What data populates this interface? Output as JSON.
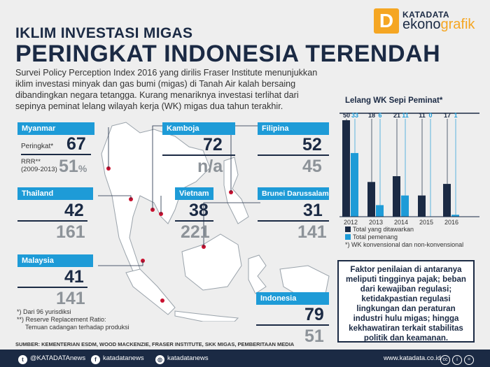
{
  "header": {
    "kicker": "IKLIM INVESTASI MIGAS",
    "headline": "PERINGKAT INDONESIA TERENDAH",
    "intro": "Survei Policy Perception Index 2016 yang dirilis Fraser Institute menunjukkan iklim investasi minyak dan gas bumi (migas) di Tanah Air kalah bersaing dibandingkan negara tetangga. Kurang menariknya investasi terlihat dari sepinya peminat lelang wilayah kerja (WK) migas dua tahun terakhir."
  },
  "logo": {
    "icon_letter": "D",
    "top": "KATADATA",
    "bottom_main": "ekono",
    "bottom_accent": "grafik"
  },
  "countries": {
    "myanmar": {
      "name": "Myanmar",
      "rank": "67",
      "rrr": "51",
      "rrr_unit": "%",
      "rank_label": "Peringkat*",
      "rrr_label": "RRR**",
      "rrr_period": "(2009-2013)"
    },
    "kamboja": {
      "name": "Kamboja",
      "rank": "72",
      "rrr": "n/a"
    },
    "filipina": {
      "name": "Filipina",
      "rank": "52",
      "rrr": "45"
    },
    "thailand": {
      "name": "Thailand",
      "rank": "42",
      "rrr": "161"
    },
    "vietnam": {
      "name": "Vietnam",
      "rank": "38",
      "rrr": "221"
    },
    "brunei": {
      "name": "Brunei Darussalam",
      "rank": "31",
      "rrr": "141"
    },
    "malaysia": {
      "name": "Malaysia",
      "rank": "41",
      "rrr": "141"
    },
    "indonesia": {
      "name": "Indonesia",
      "rank": "79",
      "rrr": "51"
    }
  },
  "notes": {
    "n1": "*) Dari 96 yurisdiksi",
    "n2": "**) Reserve Replacement Ratio:",
    "n3": "Temuan cadangan terhadap produksi"
  },
  "chart_data": {
    "type": "bar",
    "title": "Lelang WK Sepi Peminat*",
    "categories": [
      "2012",
      "2013",
      "2014",
      "2015",
      "2016"
    ],
    "series": [
      {
        "name": "Total yang ditawarkan",
        "values": [
          50,
          18,
          21,
          11,
          17
        ],
        "color": "#1b2a44"
      },
      {
        "name": "Total pemenang",
        "values": [
          33,
          6,
          11,
          0,
          1
        ],
        "color": "#1e9bd7"
      }
    ],
    "ylim": [
      0,
      50
    ],
    "grid": false,
    "legend": "bottom",
    "note": "*) WK konvensional dan non-konvensional"
  },
  "factors": "Faktor penilaian di antaranya meliputi tingginya pajak; beban dari kewajiban regulasi; ketidakpastian regulasi lingkungan dan peraturan industri hulu migas; hingga kekhawatiran terkait stabilitas politik dan keamanan.",
  "source": "SUMBER: KEMENTERIAN ESDM, WOOD MACKENZIE, FRASER INSTITUTE, SKK MIGAS, PEMBERITAAN MEDIA",
  "footer": {
    "twitter": "@KATADATAnews",
    "facebook": "katadatanews",
    "instagram": "katadatanews",
    "website": "www.katadata.co.id",
    "cc": "cc",
    "by": "i",
    "nd": "="
  }
}
